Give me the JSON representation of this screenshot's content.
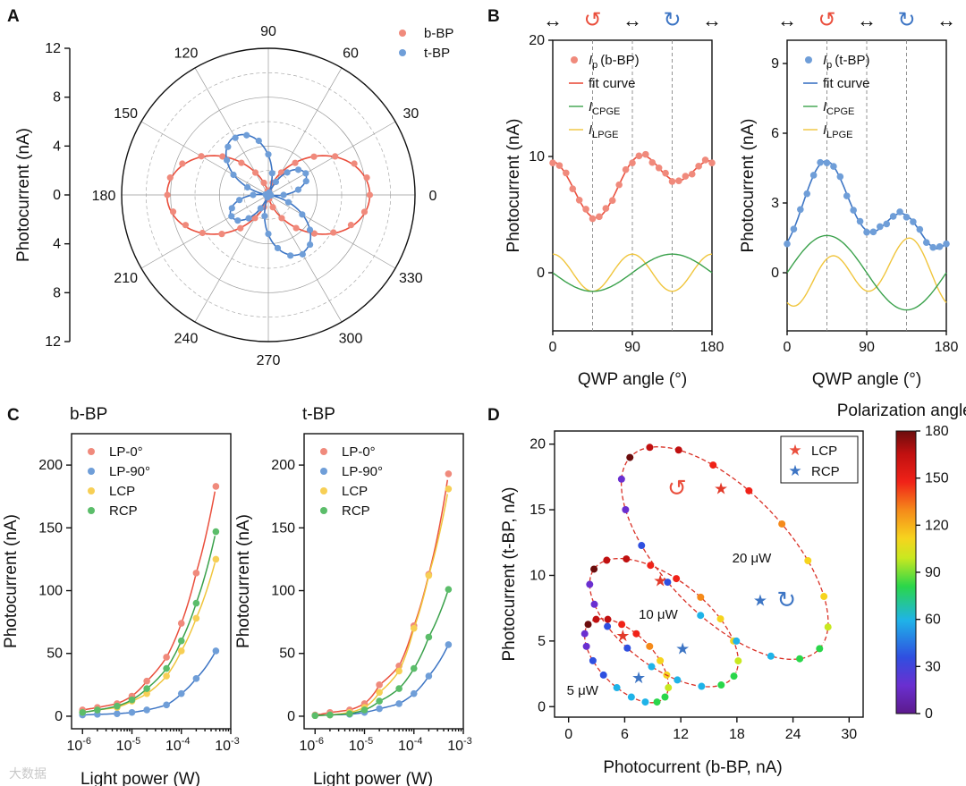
{
  "panels": {
    "A": "A",
    "B": "B",
    "C": "C",
    "D": "D"
  },
  "colors": {
    "red": "#ea4f3d",
    "redDot": "#f08a7c",
    "blue": "#3d75c4",
    "blueDot": "#6f9ed8",
    "green": "#3aa14b",
    "greenDot": "#5bbd6a",
    "yellow": "#f0c53c",
    "yellowDot": "#f7cf55"
  },
  "chart_data": [
    {
      "panel": "A",
      "type": "scatter",
      "coordinate_system": "polar",
      "ylabel": "Photocurrent (nA)",
      "angle_ticks": [
        "0",
        "30",
        "60",
        "90",
        "120",
        "150",
        "180",
        "210",
        "240",
        "270",
        "300",
        "330"
      ],
      "radius_ticks": [
        "12",
        "8",
        "4",
        "0",
        "4",
        "8",
        "12"
      ],
      "rlim": [
        0,
        12
      ],
      "legend": {
        "position": "top-right"
      },
      "series": [
        {
          "name": "b-BP",
          "model": {
            "a": 4.2,
            "b": 4.1,
            "phi": 0
          },
          "angles": [
            0,
            10,
            20,
            30,
            40,
            50,
            60,
            70,
            80,
            90,
            100,
            110,
            120,
            130,
            140,
            150,
            160,
            170,
            180,
            190,
            200,
            210,
            220,
            230,
            240,
            250,
            260,
            270,
            280,
            290,
            300,
            310,
            320,
            330,
            340,
            350
          ]
        },
        {
          "name": "t-BP",
          "model": {
            "a": 1.0,
            "b": 4.5,
            "phi": 120
          },
          "angles": [
            0,
            10,
            20,
            30,
            40,
            50,
            60,
            70,
            80,
            90,
            100,
            110,
            120,
            130,
            140,
            150,
            160,
            170,
            180,
            190,
            200,
            210,
            220,
            230,
            240,
            250,
            260,
            270,
            280,
            290,
            300,
            310,
            320,
            330,
            340,
            350
          ]
        }
      ]
    },
    {
      "panel": "B-left",
      "type": "line",
      "xlabel": "QWP angle (°)",
      "ylabel": "Photocurrent (nA)",
      "xlim": [
        0,
        180
      ],
      "ylim": [
        -5,
        20
      ],
      "xticks": [
        0,
        90,
        180
      ],
      "yticks": [
        0,
        10,
        20
      ],
      "legend": {
        "position": "top-right"
      },
      "legend_labels": {
        "data": "(b-BP)",
        "symbol_ip": "I",
        "sub_p": "p",
        "fit": "fit curve",
        "sub_cpge": "CPGE",
        "sub_lpge": "LPGE",
        "symbol_i": "I"
      },
      "arrows": [
        "↔",
        "↺",
        "↔",
        "↻",
        "↔"
      ],
      "guides_x": [
        45,
        90,
        135
      ],
      "model": {
        "offset": 8,
        "C": -1.6,
        "L": 1.6,
        "D": 0.5
      },
      "x": [
        0,
        7.5,
        15,
        22.5,
        30,
        37.5,
        45,
        52.5,
        60,
        67.5,
        75,
        82.5,
        90,
        97.5,
        105,
        112.5,
        120,
        127.5,
        135,
        142.5,
        150,
        157.5,
        165,
        172.5,
        180
      ],
      "series": [
        {
          "name": "I_p (b-BP)"
        },
        {
          "name": "fit curve"
        },
        {
          "name": "I_CPGE"
        },
        {
          "name": "I_LPGE"
        }
      ]
    },
    {
      "panel": "B-right",
      "type": "line",
      "xlabel": "QWP angle (°)",
      "ylabel": "Photocurrent (nA)",
      "xlim": [
        0,
        180
      ],
      "ylim": [
        -2.5,
        10
      ],
      "xticks": [
        0,
        90,
        180
      ],
      "yticks": [
        0,
        3,
        6,
        9
      ],
      "legend": {
        "position": "top-right"
      },
      "legend_labels": {
        "data": "(t-BP)",
        "symbol_ip": "I",
        "sub_p": "p",
        "fit": "fit curve",
        "sub_cpge": "CPGE",
        "sub_lpge": "LPGE",
        "symbol_i": "I"
      },
      "arrows": [
        "↔",
        "↺",
        "↔",
        "↻",
        "↔"
      ],
      "guides_x": [
        45,
        90,
        135
      ],
      "model": {
        "offset": 2.6,
        "C": 1.6,
        "L": 1.1,
        "L2": -0.5,
        "D": 0.6
      },
      "x": [
        0,
        7.5,
        15,
        22.5,
        30,
        37.5,
        45,
        52.5,
        60,
        67.5,
        75,
        82.5,
        90,
        97.5,
        105,
        112.5,
        120,
        127.5,
        135,
        142.5,
        150,
        157.5,
        165,
        172.5,
        180
      ],
      "series": [
        {
          "name": "I_p (t-BP)"
        },
        {
          "name": "fit curve"
        },
        {
          "name": "I_CPGE"
        },
        {
          "name": "I_LPGE"
        }
      ],
      "extra_label": "Polarization angle (°)"
    },
    {
      "panel": "C-left",
      "type": "line",
      "title": "b-BP",
      "xlabel": "Light power (W)",
      "ylabel": "Photocurrent (nA)",
      "xscale": "log",
      "xlim": [
        6e-07,
        0.001
      ],
      "ylim": [
        -10,
        225
      ],
      "xtick_labels": [
        {
          "base": "10",
          "exp": "-6",
          "v": -6
        },
        {
          "base": "10",
          "exp": "-5",
          "v": -5
        },
        {
          "base": "10",
          "exp": "-4",
          "v": -4
        },
        {
          "base": "10",
          "exp": "-3",
          "v": -3
        }
      ],
      "yticks": [
        0,
        50,
        100,
        150,
        200
      ],
      "legend": {
        "position": "top-left"
      },
      "x": [
        1e-06,
        2e-06,
        5e-06,
        1e-05,
        2e-05,
        5e-05,
        0.0001,
        0.0002,
        0.0005
      ],
      "series": [
        {
          "name": "LP-0°",
          "values": [
            5,
            7,
            10,
            16,
            28,
            47,
            74,
            114,
            183
          ]
        },
        {
          "name": "LP-90°",
          "values": [
            1,
            1.5,
            2,
            3,
            5,
            9,
            18,
            30,
            52
          ]
        },
        {
          "name": "LCP",
          "values": [
            3,
            5,
            7,
            12,
            18,
            32,
            52,
            78,
            125
          ]
        },
        {
          "name": "RCP",
          "values": [
            3,
            5,
            8,
            13,
            22,
            38,
            60,
            90,
            147
          ]
        }
      ]
    },
    {
      "panel": "C-right",
      "type": "line",
      "title": "t-BP",
      "xlabel": "Light power (W)",
      "ylabel": "Photocurrent (nA)",
      "xscale": "log",
      "xlim": [
        6e-07,
        0.001
      ],
      "ylim": [
        -10,
        225
      ],
      "xtick_labels": [
        {
          "base": "10",
          "exp": "-6",
          "v": -6
        },
        {
          "base": "10",
          "exp": "-5",
          "v": -5
        },
        {
          "base": "10",
          "exp": "-4",
          "v": -4
        },
        {
          "base": "10",
          "exp": "-3",
          "v": -3
        }
      ],
      "yticks": [
        0,
        50,
        100,
        150,
        200
      ],
      "legend": {
        "position": "top-left"
      },
      "x": [
        1e-06,
        2e-06,
        5e-06,
        1e-05,
        2e-05,
        5e-05,
        0.0001,
        0.0002,
        0.0005
      ],
      "series": [
        {
          "name": "LP-0°",
          "values": [
            1,
            3,
            5,
            10,
            25,
            40,
            72,
            113,
            193
          ]
        },
        {
          "name": "LP-90°",
          "values": [
            0.5,
            1,
            1.5,
            3,
            6,
            10,
            18,
            32,
            57
          ]
        },
        {
          "name": "LCP",
          "values": [
            0.5,
            1,
            3,
            7,
            19,
            36,
            70,
            112,
            181
          ]
        },
        {
          "name": "RCP",
          "values": [
            0.5,
            1,
            2,
            5,
            12,
            22,
            38,
            63,
            101
          ]
        }
      ]
    },
    {
      "panel": "D",
      "type": "scatter",
      "xlabel": "Photocurrent (b-BP, nA)",
      "ylabel": "Photocurrent (t-BP, nA)",
      "xlim": [
        -1.5,
        31.5
      ],
      "ylim": [
        -0.8,
        21
      ],
      "xticks": [
        0,
        6,
        12,
        18,
        24,
        30
      ],
      "yticks": [
        0,
        5,
        10,
        15,
        20
      ],
      "legend": {
        "position": "top-right"
      },
      "legend_labels": {
        "lcp": "LCP",
        "rcp": "RCP"
      },
      "colorbar": {
        "min": 0,
        "max": 180,
        "ticks": [
          0,
          30,
          60,
          90,
          120,
          150,
          180
        ]
      },
      "loops": [
        {
          "label": "5 μW",
          "label_pos": [
            -0.2,
            0.9
          ],
          "center": [
            6.2,
            3.5
          ],
          "axes": [
            5,
            2.3
          ],
          "rot": -30,
          "lcp": [
            5.8,
            5.4
          ],
          "rcp": [
            7.5,
            2.2
          ],
          "lcp_color": "#e23a2a",
          "rcp_color": "#3d75c4"
        },
        {
          "label": "10 μW",
          "label_pos": [
            7.5,
            6.7
          ],
          "center": [
            10.2,
            6.4
          ],
          "axes": [
            8.6,
            3.6
          ],
          "rot": -25,
          "lcp": [
            9.8,
            9.6
          ],
          "rcp": [
            12.2,
            4.4
          ],
          "lcp_color": "#e23a2a",
          "rcp_color": "#3d75c4"
        },
        {
          "label": "20 μW",
          "label_pos": [
            17.5,
            11.0
          ],
          "center": [
            16.7,
            11.7
          ],
          "axes": [
            12.6,
            5.4
          ],
          "rot": -32,
          "lcp": [
            16.3,
            16.6
          ],
          "rcp": [
            20.5,
            8.1
          ],
          "lcp_color": "#e23a2a",
          "rcp_color": "#3d75c4"
        }
      ]
    }
  ],
  "watermark": "大数据"
}
